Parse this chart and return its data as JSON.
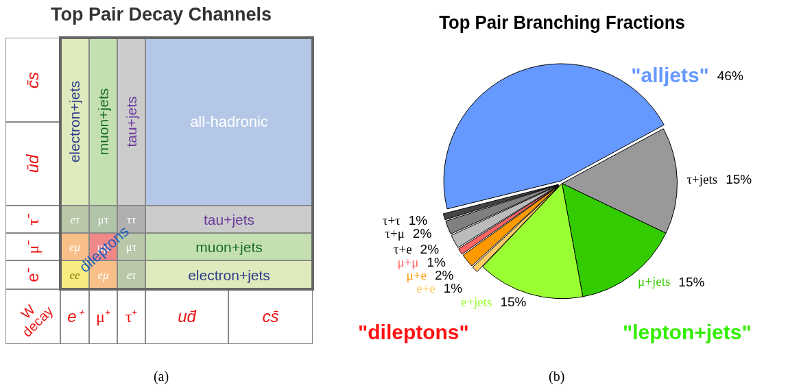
{
  "chart_data": [
    {
      "type": "other",
      "title": "Top Pair Decay Channels",
      "annotations": [
        "c̄s",
        "ūd",
        "τ⁻",
        "μ⁻",
        "e⁻",
        "W\ndecay",
        "e⁺",
        "μ⁺",
        "τ⁺",
        "ud̄",
        "cs̄",
        "electron+jets",
        "muon+jets",
        "tau+jets",
        "all-hadronic",
        "eτ",
        "μτ",
        "ττ",
        "tau+jets",
        "eμ",
        "μμ",
        "μτ",
        "muon+jets",
        "ee",
        "eμ",
        "eτ",
        "electron+jets",
        "dileptons",
        "(a)"
      ]
    },
    {
      "type": "pie",
      "title": "Top Pair Branching Fractions",
      "categories": [
        "\"alljets\"",
        "τ+jets",
        "μ+jets",
        "e+jets",
        "e+e",
        "μ+e",
        "μ+μ",
        "τ+e",
        "τ+μ",
        "τ+τ"
      ],
      "values": [
        46,
        15,
        15,
        15,
        1,
        2,
        1,
        2,
        2,
        1
      ],
      "colors": [
        "#6699ff",
        "#999999",
        "#33cc00",
        "#99ff33",
        "#ffcc66",
        "#ff9900",
        "#ff6666",
        "#bbbbbb",
        "#808080",
        "#444444"
      ],
      "value_labels": [
        "46%",
        "15%",
        "15%",
        "15%",
        "1%",
        "2%",
        "1%",
        "2%",
        "2%",
        "1%"
      ],
      "annotations": [
        "\"dileptons\"",
        "\"lepton+jets\"",
        "(b)"
      ]
    }
  ]
}
